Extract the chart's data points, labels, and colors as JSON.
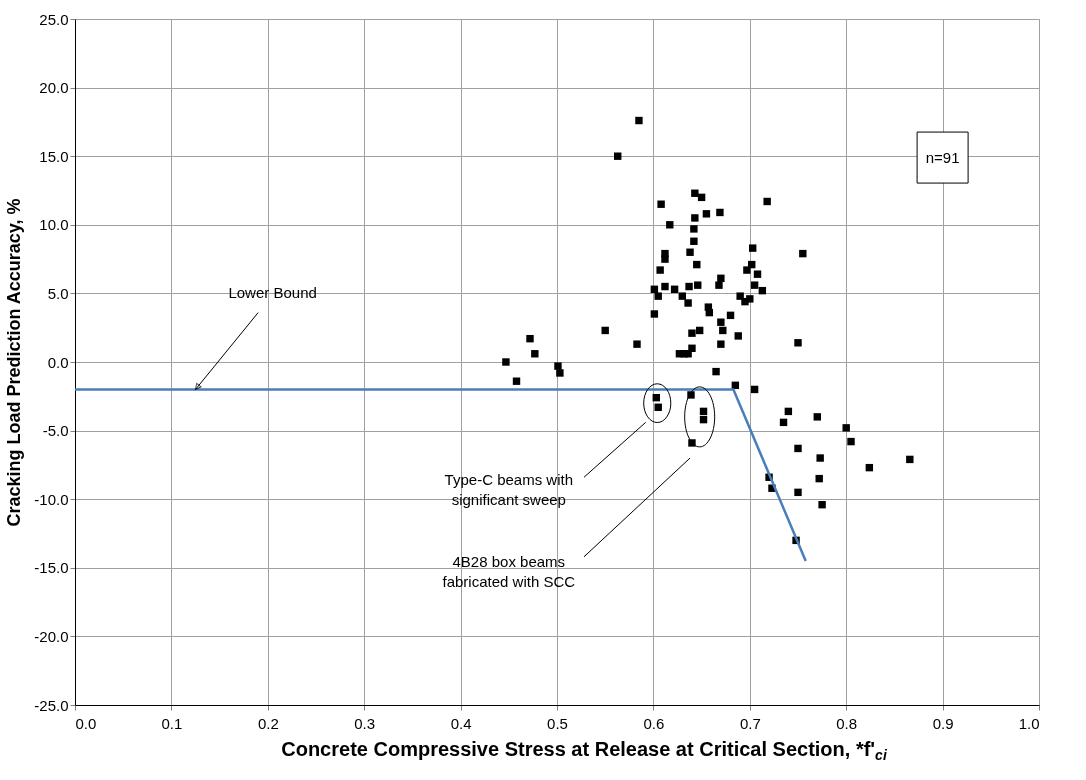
{
  "chart_data": {
    "type": "scatter",
    "xlabel": "Concrete Compressive Stress at Release at Critical Section, *f'$_{ci}$",
    "ylabel": "Cracking Load Prediction Accuracy, %",
    "xlim": [
      0,
      1
    ],
    "ylim": [
      -25,
      25
    ],
    "xticks": [
      {
        "value": 0,
        "label": "0.0"
      },
      {
        "value": 0.1,
        "label": "0.1"
      },
      {
        "value": 0.2,
        "label": "0.2"
      },
      {
        "value": 0.3,
        "label": "0.3"
      },
      {
        "value": 0.4,
        "label": "0.4"
      },
      {
        "value": 0.5,
        "label": "0.5"
      },
      {
        "value": 0.6,
        "label": "0.6"
      },
      {
        "value": 0.7,
        "label": "0.7"
      },
      {
        "value": 0.8,
        "label": "0.8"
      },
      {
        "value": 0.9,
        "label": "0.9"
      },
      {
        "value": 1,
        "label": "1.0"
      }
    ],
    "yticks": [
      {
        "value": -25,
        "label": "-25.0"
      },
      {
        "value": -20,
        "label": "-20.0"
      },
      {
        "value": -15,
        "label": "-15.0"
      },
      {
        "value": -10,
        "label": "-10.0"
      },
      {
        "value": -5,
        "label": "-5.0"
      },
      {
        "value": 0,
        "label": "0.0"
      },
      {
        "value": 5,
        "label": "5.0"
      },
      {
        "value": 10,
        "label": "10.0"
      },
      {
        "value": 15,
        "label": "15.0"
      },
      {
        "value": 20,
        "label": "20.0"
      },
      {
        "value": 25,
        "label": "25.0"
      }
    ],
    "grid": true,
    "legend": false,
    "series": [
      {
        "marker": "square",
        "color": "#000000",
        "x": [
          0.447,
          0.458,
          0.472,
          0.477,
          0.501,
          0.503,
          0.55,
          0.583,
          0.563,
          0.585,
          0.601,
          0.601,
          0.605,
          0.607,
          0.608,
          0.612,
          0.612,
          0.612,
          0.617,
          0.622,
          0.627,
          0.63,
          0.632,
          0.636,
          0.638,
          0.637,
          0.636,
          0.64,
          0.64,
          0.642,
          0.642,
          0.643,
          0.643,
          0.645,
          0.646,
          0.648,
          0.65,
          0.655,
          0.657,
          0.658,
          0.665,
          0.668,
          0.669,
          0.67,
          0.67,
          0.67,
          0.672,
          0.68,
          0.685,
          0.688,
          0.69,
          0.695,
          0.697,
          0.7,
          0.702,
          0.703,
          0.705,
          0.708,
          0.713,
          0.718,
          0.705,
          0.755,
          0.75,
          0.603,
          0.605,
          0.639,
          0.64,
          0.652,
          0.652,
          0.72,
          0.723,
          0.735,
          0.74,
          0.77,
          0.75,
          0.773,
          0.772,
          0.75,
          0.775,
          0.748,
          0.8,
          0.805,
          0.824,
          0.866
        ],
        "values": [
          0.0,
          -1.4,
          1.7,
          0.6,
          -0.3,
          -0.8,
          2.3,
          1.3,
          15.0,
          17.6,
          5.3,
          3.5,
          4.8,
          6.7,
          11.5,
          7.9,
          7.5,
          5.5,
          10.0,
          5.3,
          0.6,
          4.8,
          0.6,
          0.6,
          8.0,
          5.5,
          4.3,
          2.1,
          1.0,
          8.8,
          9.7,
          10.5,
          12.3,
          7.1,
          5.6,
          2.3,
          12.0,
          10.8,
          4.0,
          3.6,
          -0.7,
          5.6,
          10.9,
          6.1,
          1.3,
          2.9,
          2.3,
          3.4,
          -1.7,
          1.9,
          4.8,
          4.4,
          6.7,
          4.6,
          7.1,
          8.3,
          5.6,
          6.4,
          5.2,
          11.7,
          -2.0,
          7.9,
          1.4,
          -2.6,
          -3.3,
          -2.4,
          -5.9,
          -3.6,
          -4.2,
          -8.4,
          -9.2,
          -4.4,
          -3.6,
          -4.0,
          -6.3,
          -7.0,
          -8.5,
          -9.5,
          -10.4,
          -13.0,
          -4.8,
          -5.8,
          -7.7,
          -7.1
        ]
      },
      {
        "type": "line",
        "marker": "none",
        "line_style": "solid",
        "color": "#4a7ebb",
        "x": [
          0,
          0.683,
          0.758
        ],
        "values": [
          -2,
          -2,
          -14.5
        ]
      }
    ],
    "annotations": [
      {
        "text": "Lower Bound",
        "x": 0.125,
        "y": -2
      },
      "Type-C beams with\nsignificant sweep",
      "4B28 box beams\nfabricated with SCC",
      "n=91"
    ]
  }
}
